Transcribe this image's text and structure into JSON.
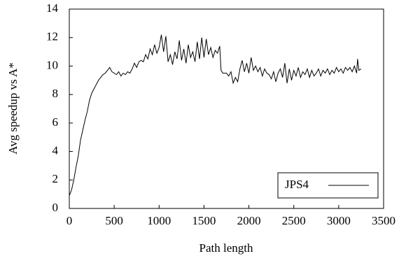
{
  "chart_data": {
    "type": "line",
    "xlabel": "Path length",
    "ylabel": "Avg speedup vs A*",
    "x": [
      0,
      25,
      50,
      75,
      100,
      125,
      150,
      175,
      200,
      225,
      250,
      275,
      300,
      325,
      350,
      375,
      400,
      425,
      450,
      475,
      500,
      525,
      550,
      575,
      600,
      625,
      650,
      675,
      700,
      725,
      750,
      775,
      800,
      825,
      850,
      875,
      900,
      925,
      950,
      975,
      1000,
      1025,
      1050,
      1075,
      1100,
      1125,
      1150,
      1175,
      1200,
      1225,
      1250,
      1275,
      1300,
      1325,
      1350,
      1375,
      1400,
      1425,
      1450,
      1475,
      1500,
      1525,
      1550,
      1575,
      1600,
      1625,
      1650,
      1675,
      1690,
      1710,
      1750,
      1775,
      1800,
      1825,
      1850,
      1875,
      1900,
      1925,
      1950,
      1975,
      2000,
      2025,
      2050,
      2075,
      2100,
      2125,
      2150,
      2175,
      2200,
      2225,
      2250,
      2275,
      2300,
      2325,
      2350,
      2375,
      2400,
      2425,
      2450,
      2475,
      2500,
      2525,
      2550,
      2575,
      2600,
      2625,
      2650,
      2675,
      2700,
      2725,
      2750,
      2775,
      2800,
      2825,
      2850,
      2875,
      2900,
      2925,
      2950,
      2975,
      3000,
      3025,
      3050,
      3075,
      3100,
      3125,
      3150,
      3175,
      3200,
      3210,
      3225,
      3250
    ],
    "series": [
      {
        "name": "JPS4",
        "color": "#000000",
        "values": [
          0.9,
          1.3,
          2.0,
          2.9,
          3.7,
          4.8,
          5.5,
          6.2,
          6.8,
          7.6,
          8.1,
          8.4,
          8.7,
          9.0,
          9.2,
          9.4,
          9.5,
          9.7,
          9.9,
          9.6,
          9.5,
          9.4,
          9.6,
          9.3,
          9.5,
          9.4,
          9.6,
          9.5,
          9.8,
          10.2,
          9.9,
          10.3,
          10.4,
          10.3,
          10.8,
          10.5,
          11.2,
          10.8,
          11.5,
          10.9,
          11.3,
          12.2,
          11.0,
          12.1,
          10.3,
          10.8,
          10.1,
          11.0,
          10.5,
          11.8,
          10.4,
          11.2,
          10.2,
          11.5,
          10.6,
          11.0,
          10.3,
          11.7,
          10.5,
          12.0,
          10.6,
          11.9,
          10.8,
          11.3,
          10.6,
          11.1,
          10.9,
          11.4,
          9.7,
          9.5,
          9.5,
          9.3,
          9.6,
          8.8,
          9.2,
          8.9,
          9.8,
          10.4,
          9.6,
          10.2,
          9.5,
          10.6,
          9.7,
          10.0,
          9.6,
          9.9,
          9.3,
          9.8,
          9.5,
          9.4,
          9.1,
          9.6,
          8.9,
          9.5,
          9.8,
          9.2,
          10.2,
          8.8,
          9.8,
          9.0,
          9.7,
          9.3,
          9.9,
          9.2,
          9.6,
          9.4,
          9.8,
          9.2,
          9.7,
          9.3,
          9.5,
          9.8,
          9.3,
          9.7,
          9.5,
          9.8,
          9.4,
          9.7,
          9.5,
          9.9,
          9.6,
          9.8,
          9.5,
          9.9,
          9.7,
          9.9,
          9.6,
          10.0,
          9.5,
          10.5,
          9.7,
          9.8
        ]
      }
    ],
    "xlim": [
      0,
      3500
    ],
    "xticks": [
      0,
      500,
      1000,
      1500,
      2000,
      2500,
      3000,
      3500
    ],
    "ylim": [
      0,
      14
    ],
    "yticks": [
      0,
      2,
      4,
      6,
      8,
      10,
      12,
      14
    ],
    "legend": "lower right"
  }
}
